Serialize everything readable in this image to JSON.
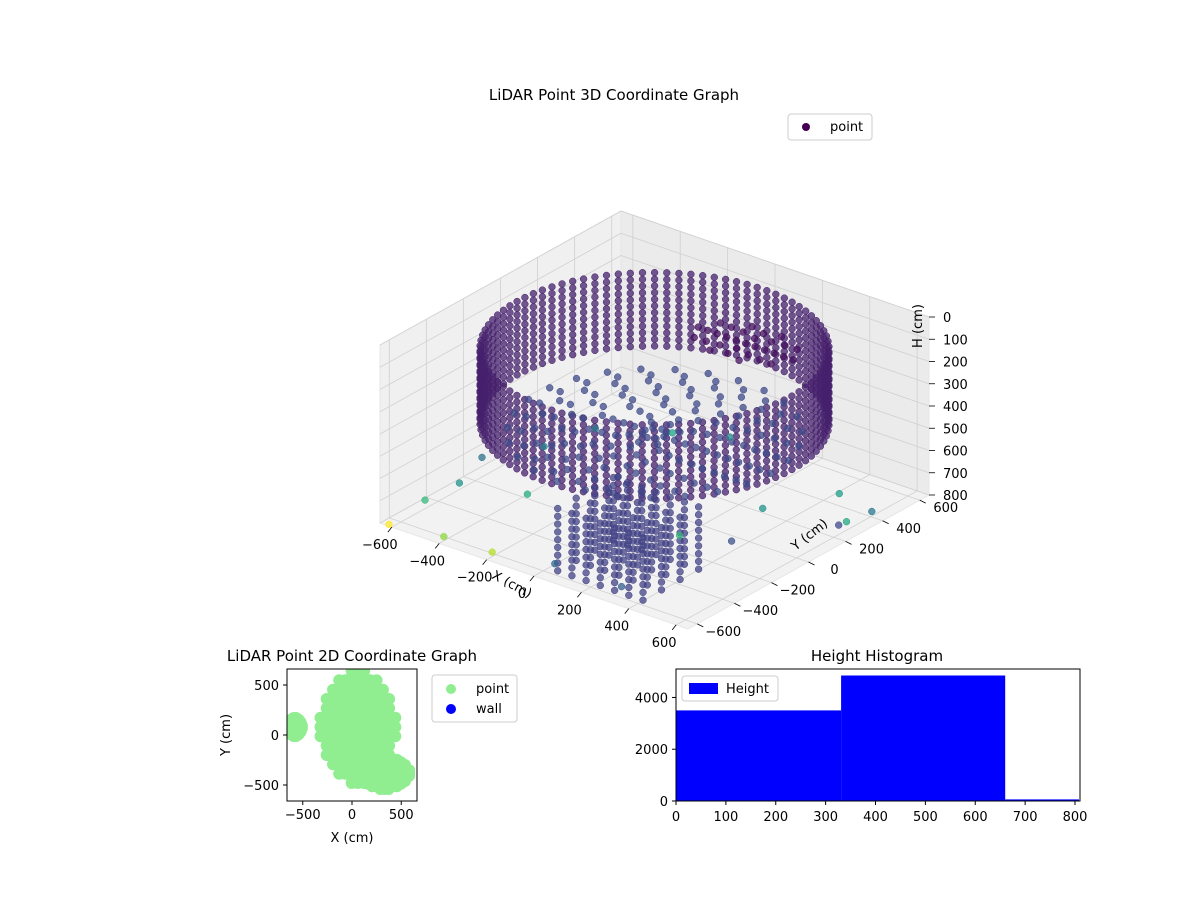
{
  "chart_data": [
    {
      "type": "scatter3d",
      "title": "LiDAR Point 3D Coordinate Graph",
      "xlabel": "X (cm)",
      "ylabel": "Y (cm)",
      "zlabel": "H (cm)",
      "xticks": [
        "−600",
        "−400",
        "−200",
        "0",
        "200",
        "400",
        "600"
      ],
      "yticks": [
        "−600",
        "−400",
        "−200",
        "0",
        "200",
        "400",
        "600"
      ],
      "zticks": [
        "0",
        "100",
        "200",
        "300",
        "400",
        "500",
        "600",
        "700",
        "800"
      ],
      "xlim": [
        -650,
        650
      ],
      "ylim": [
        -650,
        650
      ],
      "zlim": [
        0,
        800
      ],
      "z_inverted": true,
      "grid": true,
      "legend": "top-right",
      "colormap": "viridis",
      "series": [
        {
          "name": "point",
          "legend_color": "#440154",
          "structures": [
            {
              "kind": "ring",
              "radius": 580,
              "h_top": 80,
              "h_bottom": 420,
              "color": "#46206c"
            },
            {
              "kind": "disc",
              "radius": 520,
              "h": 460,
              "color": "#3f4a8a"
            },
            {
              "kind": "blob",
              "x": 150,
              "y": 300,
              "radius": 220,
              "h": 140,
              "color": "#440f5d"
            },
            {
              "kind": "block",
              "x": [
                100,
                500
              ],
              "y": [
                -650,
                -350
              ],
              "h_top": 460,
              "h_bottom": 750,
              "color": "#424186"
            }
          ],
          "scatter": [
            {
              "x": -650,
              "y": -100,
              "h": 760,
              "color": "#2c728e"
            },
            {
              "x": -560,
              "y": 120,
              "h": 780,
              "color": "#26828e"
            },
            {
              "x": -620,
              "y": -260,
              "h": 790,
              "color": "#21918c"
            },
            {
              "x": -500,
              "y": 320,
              "h": 770,
              "color": "#2a788e"
            },
            {
              "x": -640,
              "y": -420,
              "h": 800,
              "color": "#35b779"
            },
            {
              "x": -420,
              "y": -600,
              "h": 800,
              "color": "#90d743"
            },
            {
              "x": -620,
              "y": -640,
              "h": 800,
              "color": "#fde725"
            },
            {
              "x": -200,
              "y": -620,
              "h": 780,
              "color": "#b5de2b"
            },
            {
              "x": 300,
              "y": 200,
              "h": 780,
              "color": "#21918c"
            },
            {
              "x": 420,
              "y": 460,
              "h": 790,
              "color": "#1f9e89"
            },
            {
              "x": 560,
              "y": 320,
              "h": 800,
              "color": "#22a884"
            },
            {
              "x": 620,
              "y": 380,
              "h": 760,
              "color": "#2a788e"
            },
            {
              "x": 80,
              "y": -640,
              "h": 720,
              "color": "#31688e"
            },
            {
              "x": 330,
              "y": -600,
              "h": 750,
              "color": "#355f8d"
            },
            {
              "x": 560,
              "y": -300,
              "h": 600,
              "color": "#3b528b"
            },
            {
              "x": 660,
              "y": 150,
              "h": 700,
              "color": "#3e4989"
            },
            {
              "x": -300,
              "y": 480,
              "h": 790,
              "color": "#1fa188"
            },
            {
              "x": -120,
              "y": 560,
              "h": 780,
              "color": "#25858e"
            },
            {
              "x": 200,
              "y": -120,
              "h": 790,
              "color": "#35b779"
            },
            {
              "x": -380,
              "y": -200,
              "h": 780,
              "color": "#27ad81"
            }
          ]
        }
      ]
    },
    {
      "type": "scatter",
      "title": "LiDAR Point 2D Coordinate Graph",
      "xlabel": "X (cm)",
      "ylabel": "Y (cm)",
      "xticks": [
        -500,
        0,
        500
      ],
      "yticks": [
        -500,
        0,
        500
      ],
      "xlim": [
        -660,
        660
      ],
      "ylim": [
        -660,
        660
      ],
      "legend": "outside-right",
      "series": [
        {
          "name": "point",
          "color": "#90ee90"
        },
        {
          "name": "wall",
          "color": "#0000ff",
          "points": []
        }
      ],
      "regions": [
        {
          "center": [
            60,
            80
          ],
          "radii": [
            380,
            560
          ]
        },
        {
          "center": [
            330,
            -380
          ],
          "radii": [
            250,
            160
          ]
        },
        {
          "center": [
            -580,
            80
          ],
          "radii": [
            70,
            90
          ]
        }
      ]
    },
    {
      "type": "bar",
      "title": "Height Histogram",
      "series": [
        {
          "name": "Height",
          "color": "#0000ff",
          "bins": [
            {
              "x0": 0,
              "x1": 331,
              "count": 3500
            },
            {
              "x0": 331,
              "x1": 660,
              "count": 4850
            },
            {
              "x0": 660,
              "x1": 808,
              "count": 60
            }
          ]
        }
      ],
      "xticks": [
        0,
        100,
        200,
        300,
        400,
        500,
        600,
        700,
        800
      ],
      "yticks": [
        0,
        2000,
        4000
      ],
      "xlim": [
        0,
        810
      ],
      "ylim": [
        0,
        5100
      ],
      "legend": "top-left"
    }
  ]
}
